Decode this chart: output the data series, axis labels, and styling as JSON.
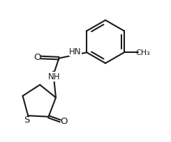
{
  "background": "#ffffff",
  "line_color": "#1a1a1a",
  "text_color": "#1a1a1a",
  "bond_lw": 1.5,
  "font_size": 8.5,
  "figsize": [
    2.45,
    2.05
  ],
  "dpi": 100,
  "xlim": [
    0.0,
    10.0
  ],
  "ylim": [
    0.5,
    9.0
  ]
}
